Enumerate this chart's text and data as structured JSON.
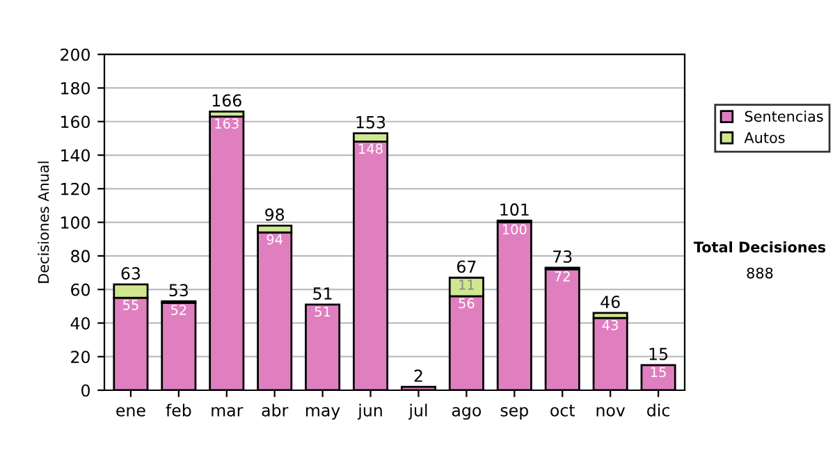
{
  "chart_data": {
    "type": "bar",
    "stacked": true,
    "ylabel": "Decisiones Anual",
    "categories": [
      "ene",
      "feb",
      "mar",
      "abr",
      "may",
      "jun",
      "jul",
      "ago",
      "sep",
      "oct",
      "nov",
      "dic"
    ],
    "series": [
      {
        "name": "Sentencias",
        "color": "#e07fc0",
        "values": [
          55,
          52,
          163,
          94,
          51,
          148,
          2,
          56,
          100,
          72,
          43,
          15
        ],
        "value_labels": [
          "55",
          "52",
          "163",
          "94",
          "51",
          "148",
          null,
          "56",
          "100",
          "72",
          "43",
          "15"
        ]
      },
      {
        "name": "Autos",
        "color": "#cfe890",
        "values": [
          8,
          1,
          3,
          4,
          0,
          5,
          0,
          11,
          1,
          1,
          3,
          0
        ],
        "value_labels": [
          null,
          null,
          null,
          null,
          null,
          null,
          null,
          "11",
          null,
          null,
          null,
          null
        ]
      }
    ],
    "totals": [
      "63",
      "53",
      "166",
      "98",
      "51",
      "153",
      "2",
      "67",
      "101",
      "73",
      "46",
      "15"
    ],
    "ylim": [
      0,
      200
    ],
    "yticks": [
      0,
      20,
      40,
      60,
      80,
      100,
      120,
      140,
      160,
      180,
      200
    ],
    "grid": "y",
    "legend": "right",
    "annotations": [
      "Total Decisiones",
      "888"
    ]
  }
}
